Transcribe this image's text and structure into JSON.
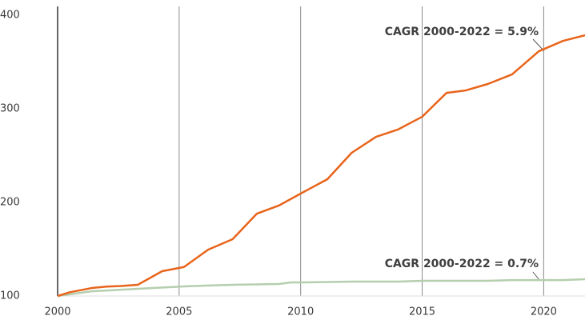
{
  "chart_data": {
    "type": "line",
    "xlim": [
      2000,
      2021.7
    ],
    "ylim": [
      100,
      400
    ],
    "xticks": [
      2000,
      2005,
      2010,
      2015,
      2020
    ],
    "yticks": [
      100,
      200,
      300,
      400
    ],
    "grid": "x",
    "series": [
      {
        "color": "#e8641b",
        "x": [
          2000,
          2000.5,
          2001.4,
          2002,
          2002.6,
          2003.3,
          2004.3,
          2005.2,
          2006.2,
          2007.2,
          2008.2,
          2009.1,
          2010,
          2011.1,
          2012.1,
          2013.1,
          2014,
          2015,
          2016,
          2016.8,
          2017.7,
          2018.7,
          2019.8,
          2020.8,
          2021.7
        ],
        "values": [
          100,
          104,
          108.5,
          110,
          110.7,
          112,
          126.5,
          131,
          149.6,
          160.7,
          188,
          196.6,
          209.4,
          224.8,
          253,
          270,
          277.8,
          291.5,
          317,
          319.7,
          326.5,
          336.8,
          361.5,
          372.6,
          378.6
        ]
      },
      {
        "color": "#b5ceae",
        "x": [
          2000,
          2001.4,
          2003.3,
          2005.2,
          2007.2,
          2009.1,
          2009.6,
          2010,
          2012.1,
          2014,
          2015,
          2017.7,
          2018.7,
          2020.8,
          2021.7
        ],
        "values": [
          100,
          105,
          107.7,
          110.3,
          112,
          112.8,
          114.5,
          114.5,
          115.4,
          115.4,
          116.2,
          116.2,
          117,
          117,
          118
        ]
      }
    ],
    "annotations": [
      "CAGR 2000-2022 = 5.9%",
      "CAGR 2000-2022 = 0.7%"
    ]
  }
}
